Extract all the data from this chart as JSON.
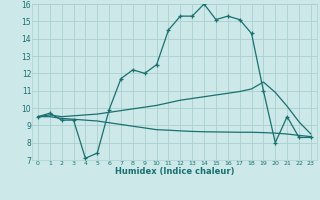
{
  "xlabel": "Humidex (Indice chaleur)",
  "xlim": [
    -0.5,
    23.5
  ],
  "ylim": [
    7,
    16
  ],
  "yticks": [
    7,
    8,
    9,
    10,
    11,
    12,
    13,
    14,
    15,
    16
  ],
  "xticks": [
    0,
    1,
    2,
    3,
    4,
    5,
    6,
    7,
    8,
    9,
    10,
    11,
    12,
    13,
    14,
    15,
    16,
    17,
    18,
    19,
    20,
    21,
    22,
    23
  ],
  "background_color": "#cce8e8",
  "grid_color": "#aad0d0",
  "line_color": "#1a7070",
  "line1_x": [
    0,
    1,
    2,
    3,
    4,
    5,
    6,
    7,
    8,
    9,
    10,
    11,
    12,
    13,
    14,
    15,
    16,
    17,
    18,
    19,
    20,
    21,
    22,
    23
  ],
  "line1_y": [
    9.5,
    9.7,
    9.3,
    9.3,
    7.1,
    7.4,
    9.9,
    11.7,
    12.2,
    12.0,
    12.5,
    14.5,
    15.3,
    15.3,
    16.0,
    15.1,
    15.3,
    15.1,
    14.3,
    11.0,
    8.0,
    9.5,
    8.3,
    8.3
  ],
  "line2_x": [
    0,
    1,
    2,
    3,
    4,
    5,
    6,
    7,
    8,
    9,
    10,
    11,
    12,
    13,
    14,
    15,
    16,
    17,
    18,
    19,
    20,
    21,
    22,
    23
  ],
  "line2_y": [
    9.5,
    9.6,
    9.5,
    9.55,
    9.6,
    9.65,
    9.75,
    9.85,
    9.95,
    10.05,
    10.15,
    10.3,
    10.45,
    10.55,
    10.65,
    10.75,
    10.85,
    10.95,
    11.1,
    11.5,
    10.9,
    10.1,
    9.2,
    8.5
  ],
  "line3_x": [
    0,
    1,
    2,
    3,
    4,
    5,
    6,
    7,
    8,
    9,
    10,
    11,
    12,
    13,
    14,
    15,
    16,
    17,
    18,
    19,
    20,
    21,
    22,
    23
  ],
  "line3_y": [
    9.5,
    9.5,
    9.4,
    9.35,
    9.3,
    9.25,
    9.15,
    9.05,
    8.95,
    8.85,
    8.75,
    8.72,
    8.68,
    8.65,
    8.63,
    8.62,
    8.61,
    8.6,
    8.6,
    8.58,
    8.55,
    8.5,
    8.42,
    8.35
  ]
}
